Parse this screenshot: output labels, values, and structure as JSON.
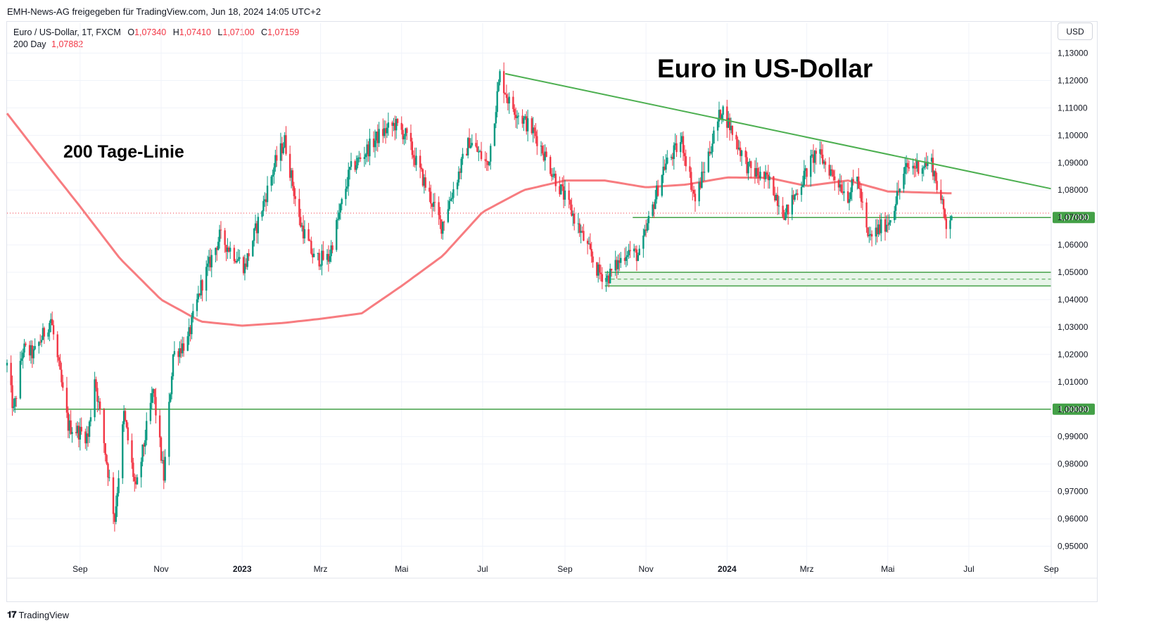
{
  "caption": "EMH-News-AG freigegeben für TradingView.com, Jun 18, 2024 14:05 UTC+2",
  "legend": {
    "symbol": "Euro / US-Dollar, 1T, FXCM",
    "open_key": "O",
    "open": "1,07340",
    "high_key": "H",
    "high": "1,07410",
    "low_key": "L",
    "low": "1,07100",
    "close_key": "C",
    "close": "1,07159",
    "ma_label": "200 Day",
    "ma_value": "1,07882"
  },
  "currency_button": "USD",
  "footer": {
    "brand": "TradingView"
  },
  "colors": {
    "up": "#089981",
    "down": "#f23645",
    "ma": "#f77c80",
    "trendline": "#4caf50",
    "support": "#43a047",
    "price_line": "#f23645"
  },
  "chart_data": {
    "type": "candlestick",
    "title": "Euro in US-Dollar",
    "annotations": [
      "Euro in US-Dollar",
      "200 Tage-Linie"
    ],
    "ylim": [
      0.945,
      1.1345
    ],
    "y_ticks": [
      "1,13000",
      "1,12000",
      "1,11000",
      "1,10000",
      "1,09000",
      "1,08000",
      "1,07000",
      "1,06000",
      "1,05000",
      "1,04000",
      "1,03000",
      "1,02000",
      "1,01000",
      "1,00000",
      "0,99000",
      "0,98000",
      "0,97000",
      "0,96000",
      "0,95000"
    ],
    "y_tick_values": [
      1.13,
      1.12,
      1.11,
      1.1,
      1.09,
      1.08,
      1.07,
      1.06,
      1.05,
      1.04,
      1.03,
      1.02,
      1.01,
      1.0,
      0.99,
      0.98,
      0.97,
      0.96,
      0.95
    ],
    "x_range": [
      "2022-07-08",
      "2024-09-01"
    ],
    "x_ticks": [
      {
        "label": "Sep",
        "date": "2022-09-01",
        "bold": false
      },
      {
        "label": "Nov",
        "date": "2022-11-01",
        "bold": false
      },
      {
        "label": "2023",
        "date": "2023-01-01",
        "bold": true
      },
      {
        "label": "Mrz",
        "date": "2023-03-01",
        "bold": false
      },
      {
        "label": "Mai",
        "date": "2023-05-01",
        "bold": false
      },
      {
        "label": "Jul",
        "date": "2023-07-01",
        "bold": false
      },
      {
        "label": "Sep",
        "date": "2023-09-01",
        "bold": false
      },
      {
        "label": "Nov",
        "date": "2023-11-01",
        "bold": false
      },
      {
        "label": "2024",
        "date": "2024-01-01",
        "bold": true
      },
      {
        "label": "Mrz",
        "date": "2024-03-01",
        "bold": false
      },
      {
        "label": "Mai",
        "date": "2024-05-01",
        "bold": false
      },
      {
        "label": "Jul",
        "date": "2024-07-01",
        "bold": false
      },
      {
        "label": "Sep",
        "date": "2024-09-01",
        "bold": false
      }
    ],
    "price_anchors": [
      [
        "2022-07-08",
        1.016
      ],
      [
        "2022-07-13",
        0.999
      ],
      [
        "2022-07-20",
        1.022
      ],
      [
        "2022-07-28",
        1.02
      ],
      [
        "2022-08-10",
        1.033
      ],
      [
        "2022-08-23",
        0.994
      ],
      [
        "2022-09-07",
        0.99
      ],
      [
        "2022-09-12",
        1.012
      ],
      [
        "2022-09-27",
        0.96
      ],
      [
        "2022-10-04",
        0.998
      ],
      [
        "2022-10-13",
        0.97
      ],
      [
        "2022-10-26",
        1.007
      ],
      [
        "2022-11-03",
        0.975
      ],
      [
        "2022-11-10",
        1.02
      ],
      [
        "2022-11-21",
        1.025
      ],
      [
        "2022-12-01",
        1.045
      ],
      [
        "2022-12-15",
        1.063
      ],
      [
        "2023-01-03",
        1.052
      ],
      [
        "2023-01-26",
        1.09
      ],
      [
        "2023-02-02",
        1.098
      ],
      [
        "2023-02-13",
        1.069
      ],
      [
        "2023-02-24",
        1.055
      ],
      [
        "2023-03-07",
        1.055
      ],
      [
        "2023-03-23",
        1.087
      ],
      [
        "2023-04-14",
        1.1
      ],
      [
        "2023-04-26",
        1.104
      ],
      [
        "2023-05-04",
        1.1
      ],
      [
        "2023-05-31",
        1.067
      ],
      [
        "2023-06-21",
        1.098
      ],
      [
        "2023-07-05",
        1.089
      ],
      [
        "2023-07-14",
        1.122
      ],
      [
        "2023-07-21",
        1.112
      ],
      [
        "2023-08-10",
        1.1
      ],
      [
        "2023-08-24",
        1.085
      ],
      [
        "2023-09-07",
        1.071
      ],
      [
        "2023-09-26",
        1.05
      ],
      [
        "2023-10-03",
        1.048
      ],
      [
        "2023-10-18",
        1.058
      ],
      [
        "2023-10-27",
        1.056
      ],
      [
        "2023-11-14",
        1.088
      ],
      [
        "2023-11-28",
        1.098
      ],
      [
        "2023-12-08",
        1.076
      ],
      [
        "2023-12-28",
        1.11
      ],
      [
        "2024-01-17",
        1.088
      ],
      [
        "2024-02-02",
        1.083
      ],
      [
        "2024-02-14",
        1.071
      ],
      [
        "2024-03-08",
        1.094
      ],
      [
        "2024-03-19",
        1.087
      ],
      [
        "2024-04-01",
        1.078
      ],
      [
        "2024-04-08",
        1.085
      ],
      [
        "2024-04-16",
        1.062
      ],
      [
        "2024-05-02",
        1.069
      ],
      [
        "2024-05-15",
        1.088
      ],
      [
        "2024-06-03",
        1.09
      ],
      [
        "2024-06-11",
        1.074
      ],
      [
        "2024-06-14",
        1.068
      ],
      [
        "2024-06-18",
        1.0716
      ]
    ],
    "ma_anchors": [
      [
        "2022-07-08",
        1.108
      ],
      [
        "2022-08-01",
        1.093
      ],
      [
        "2022-09-01",
        1.074
      ],
      [
        "2022-10-01",
        1.055
      ],
      [
        "2022-11-01",
        1.04
      ],
      [
        "2022-12-01",
        1.032
      ],
      [
        "2023-01-01",
        1.0305
      ],
      [
        "2023-02-01",
        1.0315
      ],
      [
        "2023-03-01",
        1.033
      ],
      [
        "2023-04-01",
        1.035
      ],
      [
        "2023-05-01",
        1.045
      ],
      [
        "2023-06-01",
        1.056
      ],
      [
        "2023-07-01",
        1.072
      ],
      [
        "2023-08-01",
        1.08
      ],
      [
        "2023-09-01",
        1.0835
      ],
      [
        "2023-10-01",
        1.0835
      ],
      [
        "2023-11-01",
        1.081
      ],
      [
        "2023-12-01",
        1.082
      ],
      [
        "2024-01-01",
        1.0846
      ],
      [
        "2024-02-01",
        1.0845
      ],
      [
        "2024-03-01",
        1.0815
      ],
      [
        "2024-04-01",
        1.0835
      ],
      [
        "2024-05-01",
        1.0795
      ],
      [
        "2024-06-18",
        1.07882
      ]
    ],
    "trendline": {
      "from": [
        "2023-07-18",
        1.1225
      ],
      "to": [
        "2024-09-01",
        1.0805
      ]
    },
    "support_levels": [
      {
        "from": "2023-10-22",
        "value": 1.07,
        "label": "1,07000"
      },
      {
        "from": "2022-07-13",
        "value": 1.0,
        "label": "1,00000"
      }
    ],
    "support_zone": {
      "from": "2023-10-01",
      "top": 1.05,
      "bottom": 1.045,
      "mid": 1.0475
    },
    "last_price": 1.0716,
    "grid": true
  }
}
